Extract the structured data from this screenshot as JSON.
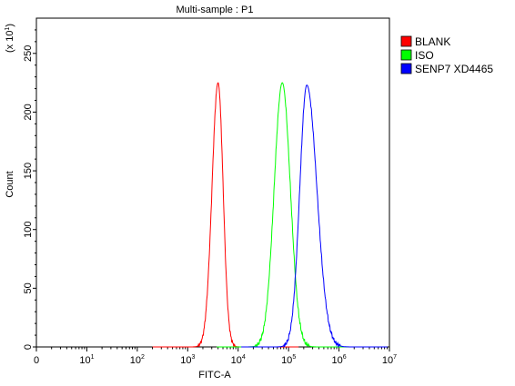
{
  "chart_data": {
    "type": "line",
    "title": "Multi-sample : P1",
    "xlabel": "FITC-A",
    "ylabel": "Count",
    "y_multiplier": "(x 10",
    "y_multiplier_exp": "1",
    "y_multiplier_close": ")",
    "x_scale": "log",
    "xlim": [
      0,
      10000000
    ],
    "ylim": [
      0,
      280
    ],
    "grid": false,
    "legend_position": "top-right",
    "x_ticks": [
      {
        "base": "0",
        "exp": ""
      },
      {
        "base": "10",
        "exp": "1"
      },
      {
        "base": "10",
        "exp": "2"
      },
      {
        "base": "10",
        "exp": "3"
      },
      {
        "base": "10",
        "exp": "4"
      },
      {
        "base": "10",
        "exp": "5"
      },
      {
        "base": "10",
        "exp": "6"
      },
      {
        "base": "10",
        "exp": "7"
      }
    ],
    "y_ticks": [
      "0",
      "50",
      "100",
      "150",
      "200",
      "250"
    ],
    "series": [
      {
        "name": "BLANK",
        "color": "#ff0000",
        "peak_x": 4000,
        "peak_y": 225,
        "left_width": 0.12,
        "right_width": 0.1
      },
      {
        "name": "ISO",
        "color": "#00ff00",
        "peak_x": 75000,
        "peak_y": 225,
        "left_width": 0.16,
        "right_width": 0.16
      },
      {
        "name": "SENP7 XD4465",
        "color": "#0000ff",
        "peak_x": 230000,
        "peak_y": 223,
        "left_width": 0.14,
        "right_width": 0.2
      }
    ]
  }
}
